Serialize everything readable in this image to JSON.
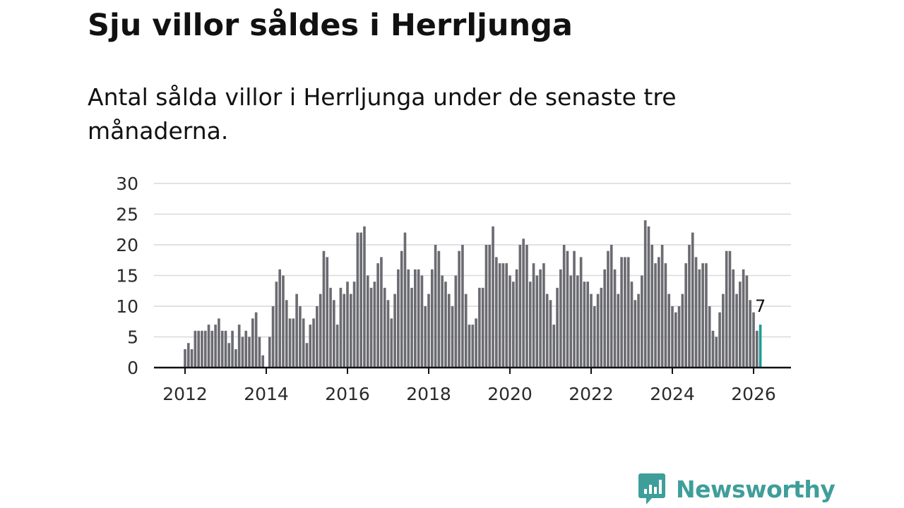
{
  "title": "Sju villor såldes i Herrljunga",
  "subtitle": "Antal sålda villor i Herrljunga under de senaste tre månaderna.",
  "brand": {
    "name": "Newsworthy",
    "icon": "newsworthy-logo-icon",
    "color": "#3f9e9a"
  },
  "colors": {
    "bar": "#6b6b72",
    "highlight": "#1f9a97",
    "grid": "#d9d9d9",
    "axis": "#111111"
  },
  "chart_data": {
    "type": "bar",
    "title": "Sju villor såldes i Herrljunga",
    "xlabel": "",
    "ylabel": "",
    "ylim": [
      0,
      30
    ],
    "yticks": [
      0,
      5,
      10,
      15,
      20,
      25,
      30
    ],
    "xticks": [
      "2012",
      "2014",
      "2016",
      "2018",
      "2020",
      "2022",
      "2024",
      "2026"
    ],
    "grid": true,
    "start": "2012-01",
    "frequency": "monthly",
    "values": [
      3,
      4,
      3,
      6,
      6,
      6,
      6,
      7,
      6,
      7,
      8,
      6,
      6,
      4,
      6,
      3,
      7,
      5,
      6,
      5,
      8,
      9,
      5,
      2,
      0,
      5,
      10,
      14,
      16,
      15,
      11,
      8,
      8,
      12,
      10,
      8,
      4,
      7,
      8,
      10,
      12,
      19,
      18,
      13,
      11,
      7,
      13,
      12,
      14,
      12,
      14,
      22,
      22,
      23,
      15,
      13,
      14,
      17,
      18,
      13,
      11,
      8,
      12,
      16,
      19,
      22,
      16,
      13,
      16,
      16,
      15,
      10,
      12,
      16,
      20,
      19,
      15,
      14,
      12,
      10,
      15,
      19,
      20,
      12,
      7,
      7,
      8,
      13,
      13,
      20,
      20,
      23,
      18,
      17,
      17,
      17,
      15,
      14,
      16,
      20,
      21,
      20,
      14,
      17,
      15,
      16,
      17,
      12,
      11,
      7,
      13,
      16,
      20,
      19,
      15,
      19,
      15,
      18,
      14,
      14,
      12,
      10,
      12,
      13,
      16,
      19,
      20,
      16,
      12,
      18,
      18,
      18,
      14,
      11,
      12,
      15,
      24,
      23,
      20,
      17,
      18,
      20,
      17,
      12,
      10,
      9,
      10,
      12,
      17,
      20,
      22,
      18,
      16,
      17,
      17,
      10,
      6,
      5,
      9,
      12,
      19,
      19,
      16,
      12,
      14,
      16,
      15,
      11,
      9,
      6,
      7
    ],
    "highlight": {
      "label": "7",
      "value": 7,
      "period": "2026-03"
    }
  }
}
